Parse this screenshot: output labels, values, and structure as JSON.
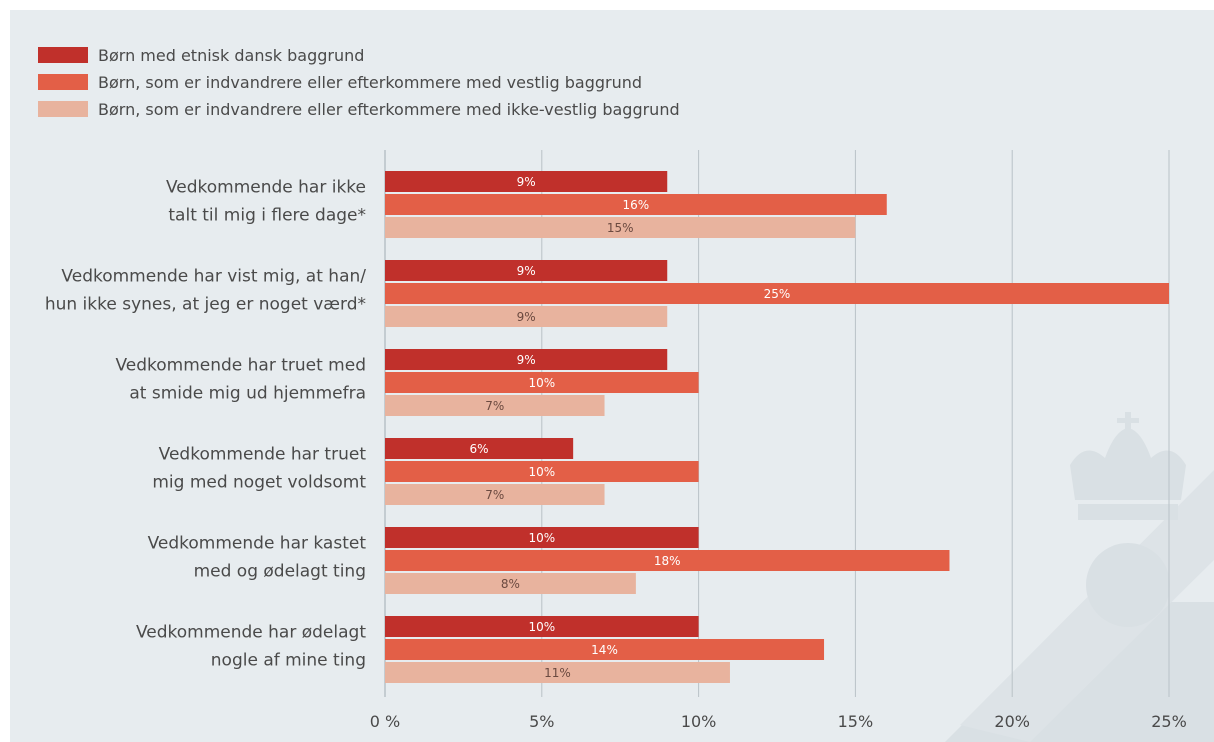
{
  "chart_data": {
    "type": "bar",
    "orientation": "horizontal",
    "title": "",
    "xlabel": "",
    "ylabel": "",
    "xlim": [
      0,
      25
    ],
    "ticks": [
      {
        "value": 0,
        "label": "0 %"
      },
      {
        "value": 5,
        "label": "5%"
      },
      {
        "value": 10,
        "label": "10%"
      },
      {
        "value": 15,
        "label": "15%"
      },
      {
        "value": 20,
        "label": "20%"
      },
      {
        "value": 25,
        "label": "25%"
      }
    ],
    "grid": true,
    "legend_position": "top-left",
    "categories": [
      [
        "Vedkommende har ikke",
        "talt til mig i flere dage*"
      ],
      [
        "Vedkommende har vist mig, at han/",
        "hun ikke synes, at jeg er noget værd*"
      ],
      [
        "Vedkommende har truet med",
        "at smide mig ud hjemmefra"
      ],
      [
        "Vedkommende har truet",
        "mig med noget voldsomt"
      ],
      [
        "Vedkommende har kastet",
        "med og ødelagt ting"
      ],
      [
        "Vedkommende har ødelagt",
        "nogle af mine ting"
      ]
    ],
    "series": [
      {
        "name": "Børn med etnisk dansk baggrund",
        "color": "#c0302b",
        "label_color": "#ffffff",
        "values": [
          9,
          9,
          9,
          6,
          10,
          10
        ],
        "value_labels": [
          "9%",
          "9%",
          "9%",
          "6%",
          "10%",
          "10%"
        ]
      },
      {
        "name": "Børn, som er indvandrere eller efterkommere med vestlig baggrund",
        "color": "#e35f47",
        "label_color": "#ffffff",
        "values": [
          16,
          25,
          10,
          10,
          18,
          14
        ],
        "value_labels": [
          "16%",
          "25%",
          "10%",
          "10%",
          "18%",
          "14%"
        ]
      },
      {
        "name": "Børn, som er indvandrere eller efterkommere med ikke-vestlig baggrund",
        "color": "#e8b39e",
        "label_color": "#6b4a40",
        "values": [
          15,
          9,
          7,
          7,
          8,
          11
        ],
        "value_labels": [
          "15%",
          "9%",
          "7%",
          "7%",
          "8%",
          "11%"
        ]
      }
    ]
  },
  "colors": {
    "background": "#e7ecef",
    "grid": "#b9c2c7",
    "text": "#4a4a4a",
    "watermark": "#d9e0e4"
  }
}
